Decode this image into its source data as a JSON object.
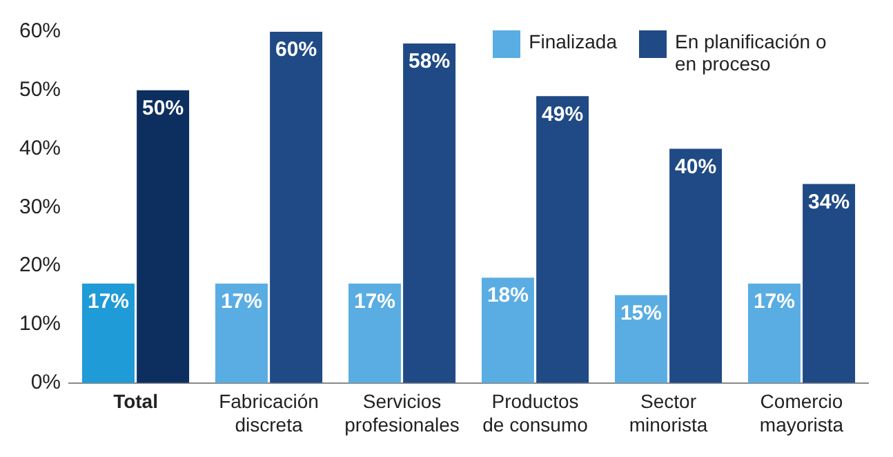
{
  "chart_data": {
    "type": "bar",
    "categories": [
      "Total",
      "Fabricación discreta",
      "Servicios profesionales",
      "Productos de consumo",
      "Sector minorista",
      "Comercio mayorista"
    ],
    "series": [
      {
        "name": "Finalizada",
        "color": "#5aade2",
        "colors": [
          "#1f9bd7",
          "#5aade2",
          "#5aade2",
          "#5aade2",
          "#5aade2",
          "#5aade2"
        ],
        "values": [
          17,
          17,
          17,
          18,
          15,
          17
        ],
        "value_labels": [
          "17%",
          "17%",
          "17%",
          "18%",
          "15%",
          "17%"
        ]
      },
      {
        "name": "En planificación o en proceso",
        "color": "#1f4a85",
        "colors": [
          "#0d2f5f",
          "#1f4a85",
          "#1f4a85",
          "#1f4a85",
          "#1f4a85",
          "#1f4a85"
        ],
        "values": [
          50,
          60,
          58,
          49,
          40,
          34
        ],
        "value_labels": [
          "50%",
          "60%",
          "58%",
          "49%",
          "40%",
          "34%"
        ]
      }
    ],
    "ylim": [
      0,
      60
    ],
    "yticks": [
      {
        "value": 0,
        "label": "0%"
      },
      {
        "value": 10,
        "label": "10%"
      },
      {
        "value": 20,
        "label": "20%"
      },
      {
        "value": 30,
        "label": "30%"
      },
      {
        "value": 40,
        "label": "40%"
      },
      {
        "value": 50,
        "label": "50%"
      },
      {
        "value": 60,
        "label": "60%"
      }
    ],
    "grid": false,
    "legend": "top right"
  }
}
